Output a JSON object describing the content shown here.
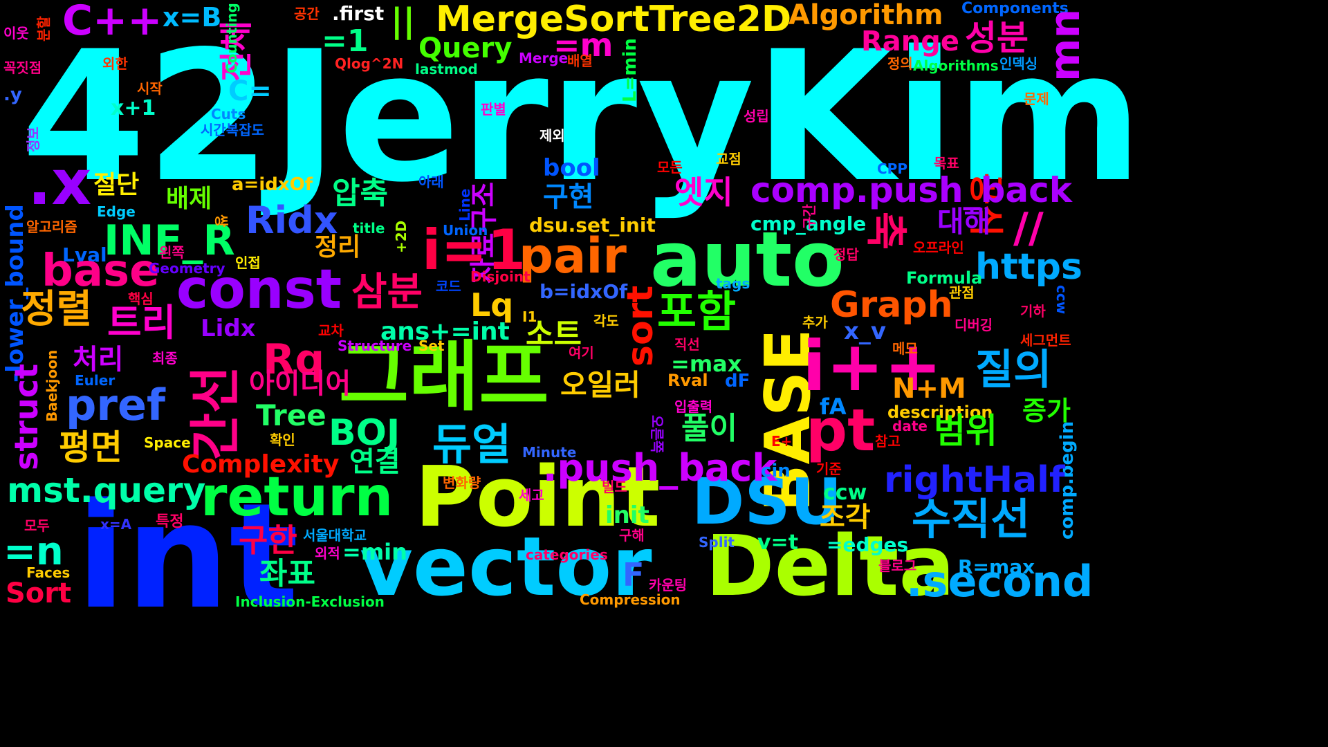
{
  "words": [
    {
      "text": "42JerryKim",
      "color": "#00ffff"
    },
    {
      "text": "int",
      "color": "#0022ff"
    },
    {
      "text": "vector",
      "color": "#00ccff"
    },
    {
      "text": "Point",
      "color": "#ccff00"
    },
    {
      "text": "Delta",
      "color": "#aaff00"
    },
    {
      "text": "auto",
      "color": "#22ff66"
    },
    {
      "text": "그래프",
      "color": "#66ff00"
    },
    {
      "text": "BASE",
      "color": "#ffee00"
    },
    {
      "text": "i++",
      "color": "#ff00aa"
    },
    {
      "text": "DSU",
      "color": "#00aaff"
    },
    {
      "text": "const",
      "color": "#9900ff"
    },
    {
      "text": "return",
      "color": "#00ff44"
    },
    {
      "text": "pt",
      "color": "#ff0066"
    },
    {
      "text": "MergeSortTree2D",
      "color": "#ffee00"
    },
    {
      "text": "C++",
      "color": "#cc00ff"
    },
    {
      "text": "x=B",
      "color": "#00bbff"
    },
    {
      "text": "=1",
      "color": "#00ff88"
    },
    {
      "text": "||",
      "color": "#66ff00"
    },
    {
      "text": "Algorithm",
      "color": "#ff9900"
    },
    {
      "text": "Components",
      "color": "#0066ff"
    },
    {
      "text": "mn",
      "color": "#cc00ff"
    },
    {
      "text": "Range",
      "color": "#ff0099"
    },
    {
      "text": "성분",
      "color": "#ff00aa"
    },
    {
      "text": "=m",
      "color": "#ff00cc"
    },
    {
      "text": "Query",
      "color": "#44ff00"
    },
    {
      "text": "전체",
      "color": "#ff00cc"
    },
    {
      "text": ".first",
      "color": "#ffffff"
    },
    {
      "text": "공간",
      "color": "#ff3300"
    },
    {
      "text": "분할",
      "color": "#ff2200"
    },
    {
      "text": "이웃",
      "color": "#ff00cc"
    },
    {
      "text": "꼭짓점",
      "color": "#ff0088"
    },
    {
      "text": "외한",
      "color": "#ff3300"
    },
    {
      "text": "시작",
      "color": "#ff6600"
    },
    {
      "text": ".y",
      "color": "#3366ff"
    },
    {
      "text": "C=",
      "color": "#00ccff"
    },
    {
      "text": "x+1",
      "color": "#00ffcc"
    },
    {
      "text": "Counting",
      "color": "#00ff66"
    },
    {
      "text": "Qlog^2N",
      "color": "#ff2222"
    },
    {
      "text": "Merge",
      "color": "#cc00ff"
    },
    {
      "text": "배열",
      "color": "#ff3300"
    },
    {
      "text": "lastmod",
      "color": "#00ff88"
    },
    {
      "text": "L=min",
      "color": "#00ff44"
    },
    {
      "text": "정의",
      "color": "#ff6600"
    },
    {
      "text": "Algorithms",
      "color": "#00ff44"
    },
    {
      "text": "인덱싱",
      "color": "#0099ff"
    },
    {
      "text": "문제",
      "color": "#ff6600"
    },
    {
      "text": "공식",
      "color": "#ff1100"
    },
    {
      "text": "Cuts",
      "color": "#0088ff"
    },
    {
      "text": "시간복잡도",
      "color": "#0066ff"
    },
    {
      "text": "판별",
      "color": "#ff00cc"
    },
    {
      "text": "성립",
      "color": "#ff00aa"
    },
    {
      "text": "제외",
      "color": "#ffffff"
    },
    {
      "text": ".x",
      "color": "#9900ff"
    },
    {
      "text": "절단",
      "color": "#ffee00"
    },
    {
      "text": "배제",
      "color": "#66ff00"
    },
    {
      "text": "a=idxOf",
      "color": "#ffcc00"
    },
    {
      "text": "정보",
      "color": "#9933ff"
    },
    {
      "text": "자료구조",
      "color": "#cc00ff"
    },
    {
      "text": "아래",
      "color": "#0055ff"
    },
    {
      "text": "압축",
      "color": "#00ff88"
    },
    {
      "text": "bool",
      "color": "#0055ff"
    },
    {
      "text": "모든",
      "color": "#ff0000"
    },
    {
      "text": "교점",
      "color": "#ffcc00"
    },
    {
      "text": "CPP",
      "color": "#0066ff"
    },
    {
      "text": "목표",
      "color": "#ff0066"
    },
    {
      "text": "구현",
      "color": "#0088ff"
    },
    {
      "text": "엣지",
      "color": "#ff00cc"
    },
    {
      "text": "comp.push_back",
      "color": "#aa00ff"
    },
    {
      "text": "INF_R",
      "color": "#00ff66"
    },
    {
      "text": "Ridx",
      "color": "#3355ff"
    },
    {
      "text": "Edge",
      "color": "#00ccff"
    },
    {
      "text": "Line",
      "color": "#0033ff"
    },
    {
      "text": "dsu.set_init",
      "color": "#ffcc00"
    },
    {
      "text": "cmp_angle",
      "color": "#00ffcc"
    },
    {
      "text": "대해",
      "color": "#9900ff"
    },
    {
      "text": "//",
      "color": "#ff00aa"
    },
    {
      "text": "알고리즘",
      "color": "#ff6600"
    },
    {
      "text": "쌍",
      "color": "#ff9900"
    },
    {
      "text": "+2D",
      "color": "#aaff00"
    },
    {
      "text": "title",
      "color": "#00ff88"
    },
    {
      "text": "Union",
      "color": "#0066ff"
    },
    {
      "text": "축",
      "color": "#ff0066"
    },
    {
      "text": "구간",
      "color": "#ff0088"
    },
    {
      "text": "오프라인",
      "color": "#ff0000"
    },
    {
      "text": "정답",
      "color": "#ff0066"
    },
    {
      "text": "Lval",
      "color": "#0066ff"
    },
    {
      "text": "왼쪽",
      "color": "#ff0088"
    },
    {
      "text": "인접",
      "color": "#ffee00"
    },
    {
      "text": "base",
      "color": "#ff0088"
    },
    {
      "text": "pair",
      "color": "#ff6600"
    },
    {
      "text": "i=1",
      "color": "#ff0044"
    },
    {
      "text": "https",
      "color": "#00aaff"
    },
    {
      "text": "Geometry",
      "color": "#6600ff"
    },
    {
      "text": "정리",
      "color": "#ffaa00"
    },
    {
      "text": "-lower_bound",
      "color": "#0055ff"
    },
    {
      "text": "Disjoint",
      "color": "#ff0044"
    },
    {
      "text": "Formula",
      "color": "#00ff88"
    },
    {
      "text": "코드",
      "color": "#0044ff"
    },
    {
      "text": "관점",
      "color": "#ffcc00"
    },
    {
      "text": "b=idxOf",
      "color": "#3366ff"
    },
    {
      "text": "tags",
      "color": "#00aaff"
    },
    {
      "text": "ccw",
      "color": "#0055ff"
    },
    {
      "text": "핵심",
      "color": "#ff0044"
    },
    {
      "text": "삼분",
      "color": "#ff0066"
    },
    {
      "text": "Lq",
      "color": "#ffcc00"
    },
    {
      "text": "Graph",
      "color": "#ff5500"
    },
    {
      "text": "기하",
      "color": "#ff0066"
    },
    {
      "text": "각도",
      "color": "#ffcc00"
    },
    {
      "text": "추가",
      "color": "#ffcc00"
    },
    {
      "text": "디버깅",
      "color": "#ff0088"
    },
    {
      "text": "정렬",
      "color": "#ffaa00"
    },
    {
      "text": "트리",
      "color": "#ff00cc"
    },
    {
      "text": "Lidx",
      "color": "#9900ff"
    },
    {
      "text": "포함",
      "color": "#22ff00"
    },
    {
      "text": "교차",
      "color": "#ff0000"
    },
    {
      "text": "I1",
      "color": "#ffcc00"
    },
    {
      "text": "ans+=int",
      "color": "#00ffaa"
    },
    {
      "text": "x_v",
      "color": "#3366ff"
    },
    {
      "text": "세그먼트",
      "color": "#ff2200"
    },
    {
      "text": "Rq",
      "color": "#ff0066"
    },
    {
      "text": "sort",
      "color": "#ff1100"
    },
    {
      "text": "소트",
      "color": "#ccff00"
    },
    {
      "text": "직선",
      "color": "#ff0066"
    },
    {
      "text": "Structure",
      "color": "#cc00ff"
    },
    {
      "text": "Set",
      "color": "#ffcc00"
    },
    {
      "text": "메모",
      "color": "#ff6600"
    },
    {
      "text": "처리",
      "color": "#cc00ff"
    },
    {
      "text": "최종",
      "color": "#ff00cc"
    },
    {
      "text": "여기",
      "color": "#ff0066"
    },
    {
      "text": "=max",
      "color": "#22ff66"
    },
    {
      "text": "Baekjoon",
      "color": "#ff9900"
    },
    {
      "text": "struct",
      "color": "#cc00ff"
    },
    {
      "text": "Euler",
      "color": "#0066ff"
    },
    {
      "text": "아이디어",
      "color": "#ff0088"
    },
    {
      "text": "오일러",
      "color": "#ffcc00"
    },
    {
      "text": "Rval",
      "color": "#ff9900"
    },
    {
      "text": "dF",
      "color": "#0066ff"
    },
    {
      "text": "N+M",
      "color": "#ff9900"
    },
    {
      "text": "질의",
      "color": "#00aaff"
    },
    {
      "text": "증가",
      "color": "#22ff00"
    },
    {
      "text": "간선",
      "color": "#ff0088"
    },
    {
      "text": "pref",
      "color": "#3366ff"
    },
    {
      "text": "Tree",
      "color": "#22ff66"
    },
    {
      "text": "입출력",
      "color": "#ff00cc"
    },
    {
      "text": "fA",
      "color": "#0088ff"
    },
    {
      "text": "description",
      "color": "#ffcc00"
    },
    {
      "text": "date",
      "color": "#ff0088"
    },
    {
      "text": "BOJ",
      "color": "#00ff88"
    },
    {
      "text": "듀얼",
      "color": "#00ccff"
    },
    {
      "text": "오른쪽",
      "color": "#9900ff"
    },
    {
      "text": "풀이",
      "color": "#22ff66"
    },
    {
      "text": "범위",
      "color": "#22ff00"
    },
    {
      "text": "평면",
      "color": "#ffcc00"
    },
    {
      "text": "Space",
      "color": "#ffee00"
    },
    {
      "text": "확인",
      "color": "#ffcc00"
    },
    {
      "text": "Minute",
      "color": "#3366ff"
    },
    {
      "text": "E+",
      "color": "#ff0000"
    },
    {
      "text": "참고",
      "color": "#ff0000"
    },
    {
      "text": "comp.begin",
      "color": "#00aaff"
    },
    {
      "text": "Complexity",
      "color": "#ff1100"
    },
    {
      "text": "연결",
      "color": "#00ff88"
    },
    {
      "text": ".push_back",
      "color": "#cc00ff"
    },
    {
      "text": "cin",
      "color": "#0088ff"
    },
    {
      "text": "기준",
      "color": "#ff0000"
    },
    {
      "text": "rightHalf",
      "color": "#2222ff"
    },
    {
      "text": "mst.query",
      "color": "#00ffaa"
    },
    {
      "text": "변화량",
      "color": "#ff6600"
    },
    {
      "text": "빌드",
      "color": "#ff0066"
    },
    {
      "text": "ccw",
      "color": "#00ff88"
    },
    {
      "text": "세고",
      "color": "#ff00cc"
    },
    {
      "text": "init",
      "color": "#22ff66"
    },
    {
      "text": "조각",
      "color": "#ffcc00"
    },
    {
      "text": "수직선",
      "color": "#00aaff"
    },
    {
      "text": "특정",
      "color": "#ff0066"
    },
    {
      "text": "x=A",
      "color": "#3333ff"
    },
    {
      "text": "모두",
      "color": "#ff0066"
    },
    {
      "text": "구한",
      "color": "#ff0044"
    },
    {
      "text": "서울대학교",
      "color": "#00aaff"
    },
    {
      "text": "v=t",
      "color": "#00ff88"
    },
    {
      "text": "=edges",
      "color": "#00ffcc"
    },
    {
      "text": "Split",
      "color": "#3366ff"
    },
    {
      "text": "=n",
      "color": "#00ffcc"
    },
    {
      "text": "외적",
      "color": "#ff00cc"
    },
    {
      "text": "=min",
      "color": "#00ffaa"
    },
    {
      "text": "구해",
      "color": "#ff0088"
    },
    {
      "text": "categories",
      "color": "#ff0066"
    },
    {
      "text": "블로그",
      "color": "#ff0088"
    },
    {
      "text": "R=max",
      "color": "#00aaff"
    },
    {
      "text": "Faces",
      "color": "#ffcc00"
    },
    {
      "text": "좌표",
      "color": "#00ff88"
    },
    {
      "text": "F",
      "color": "#3366ff"
    },
    {
      "text": "카운팅",
      "color": "#ff00aa"
    },
    {
      "text": "Sort",
      "color": "#ff0044"
    },
    {
      "text": "Inclusion-Exclusion",
      "color": "#00ff44"
    },
    {
      "text": "Compression",
      "color": "#ff9900"
    },
    {
      "text": ".second",
      "color": "#00aaff"
    }
  ]
}
